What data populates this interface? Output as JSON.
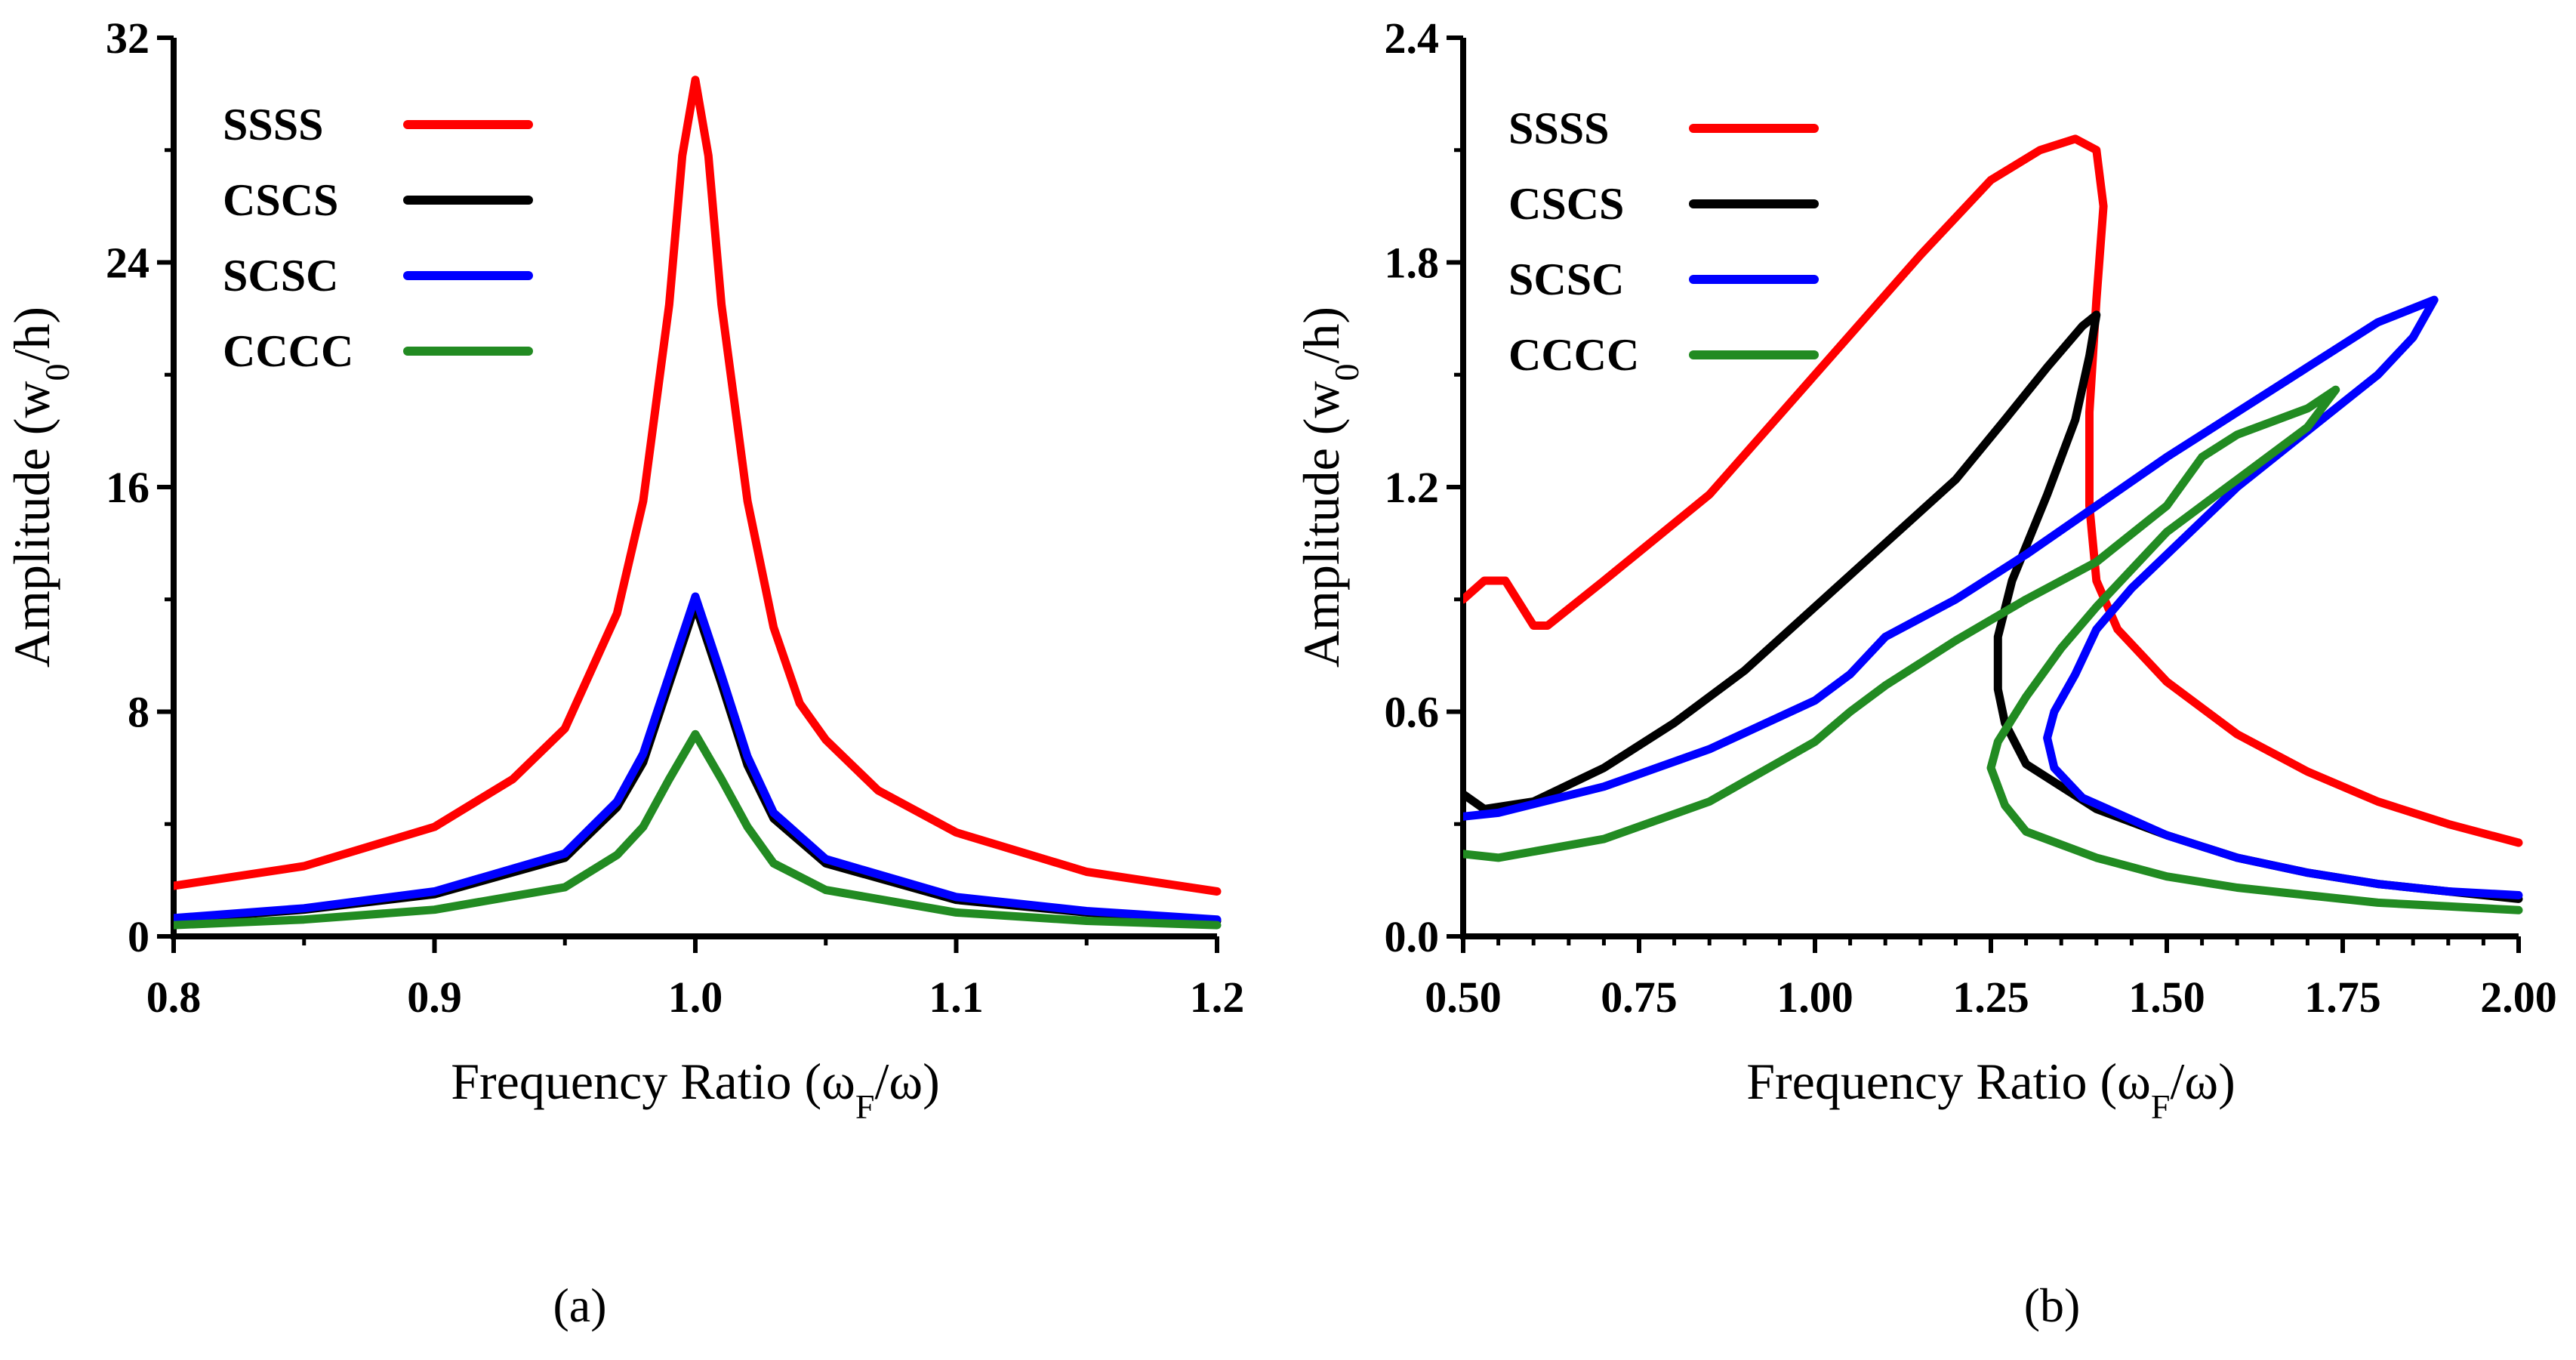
{
  "chart_data": [
    {
      "panel": "(a)",
      "type": "line",
      "xlabel": "Frequency Ratio (ω_F/ω)",
      "ylabel": "Amplitude (w_0/h)",
      "xlim": [
        0.8,
        1.2
      ],
      "ylim": [
        0,
        32
      ],
      "x_ticks": [
        "0.8",
        "0.9",
        "1.0",
        "1.1",
        "1.2"
      ],
      "y_ticks": [
        "0",
        "8",
        "16",
        "24",
        "32"
      ],
      "legend_position": "top-left",
      "grid": false,
      "series": [
        {
          "name": "SSSS",
          "color": "#ff0000",
          "points": [
            [
              0.8,
              1.8
            ],
            [
              0.85,
              2.5
            ],
            [
              0.9,
              3.9
            ],
            [
              0.93,
              5.6
            ],
            [
              0.95,
              7.4
            ],
            [
              0.97,
              11.5
            ],
            [
              0.98,
              15.5
            ],
            [
              0.99,
              22.5
            ],
            [
              0.995,
              27.8
            ],
            [
              1.0,
              30.5
            ],
            [
              1.005,
              27.8
            ],
            [
              1.01,
              22.5
            ],
            [
              1.02,
              15.5
            ],
            [
              1.03,
              11.0
            ],
            [
              1.04,
              8.3
            ],
            [
              1.05,
              7.0
            ],
            [
              1.07,
              5.2
            ],
            [
              1.1,
              3.7
            ],
            [
              1.15,
              2.3
            ],
            [
              1.2,
              1.6
            ]
          ]
        },
        {
          "name": "CSCS",
          "color": "#000000",
          "points": [
            [
              0.8,
              0.6
            ],
            [
              0.85,
              0.95
            ],
            [
              0.9,
              1.5
            ],
            [
              0.95,
              2.8
            ],
            [
              0.97,
              4.6
            ],
            [
              0.98,
              6.2
            ],
            [
              0.99,
              9.0
            ],
            [
              1.0,
              11.8
            ],
            [
              1.01,
              9.0
            ],
            [
              1.02,
              6.1
            ],
            [
              1.03,
              4.2
            ],
            [
              1.05,
              2.6
            ],
            [
              1.1,
              1.3
            ],
            [
              1.15,
              0.85
            ],
            [
              1.2,
              0.55
            ]
          ]
        },
        {
          "name": "SCSC",
          "color": "#0000ff",
          "points": [
            [
              0.8,
              0.65
            ],
            [
              0.85,
              1.0
            ],
            [
              0.9,
              1.6
            ],
            [
              0.95,
              2.95
            ],
            [
              0.97,
              4.8
            ],
            [
              0.98,
              6.5
            ],
            [
              0.99,
              9.3
            ],
            [
              1.0,
              12.1
            ],
            [
              1.01,
              9.3
            ],
            [
              1.02,
              6.4
            ],
            [
              1.03,
              4.4
            ],
            [
              1.05,
              2.75
            ],
            [
              1.1,
              1.4
            ],
            [
              1.15,
              0.9
            ],
            [
              1.2,
              0.6
            ]
          ]
        },
        {
          "name": "CCCC",
          "color": "#228b22",
          "points": [
            [
              0.8,
              0.4
            ],
            [
              0.85,
              0.6
            ],
            [
              0.9,
              0.95
            ],
            [
              0.95,
              1.75
            ],
            [
              0.97,
              2.9
            ],
            [
              0.98,
              3.9
            ],
            [
              0.99,
              5.6
            ],
            [
              1.0,
              7.2
            ],
            [
              1.01,
              5.6
            ],
            [
              1.02,
              3.9
            ],
            [
              1.03,
              2.6
            ],
            [
              1.05,
              1.65
            ],
            [
              1.1,
              0.85
            ],
            [
              1.15,
              0.55
            ],
            [
              1.2,
              0.4
            ]
          ]
        }
      ]
    },
    {
      "panel": "(b)",
      "type": "line",
      "xlabel": "Frequency Ratio (ω_F/ω)",
      "ylabel": "Amplitude (w_0/h)",
      "xlim": [
        0.5,
        2.0
      ],
      "ylim": [
        0,
        2.4
      ],
      "x_ticks": [
        "0.50",
        "0.75",
        "1.00",
        "1.25",
        "1.50",
        "1.75",
        "2.00"
      ],
      "y_ticks": [
        "0.0",
        "0.6",
        "1.2",
        "1.8",
        "2.4"
      ],
      "legend_position": "top-left",
      "grid": false,
      "series": [
        {
          "name": "SSSS",
          "color": "#ff0000",
          "points": [
            [
              0.5,
              0.9
            ],
            [
              0.53,
              0.95
            ],
            [
              0.56,
              0.95
            ],
            [
              0.6,
              0.83
            ],
            [
              0.62,
              0.83
            ],
            [
              0.7,
              0.95
            ],
            [
              0.85,
              1.18
            ],
            [
              1.0,
              1.5
            ],
            [
              1.15,
              1.82
            ],
            [
              1.25,
              2.02
            ],
            [
              1.32,
              2.1
            ],
            [
              1.37,
              2.13
            ],
            [
              1.4,
              2.1
            ],
            [
              1.41,
              1.95
            ],
            [
              1.4,
              1.7
            ],
            [
              1.39,
              1.4
            ],
            [
              1.39,
              1.15
            ],
            [
              1.4,
              0.95
            ],
            [
              1.43,
              0.82
            ],
            [
              1.5,
              0.68
            ],
            [
              1.6,
              0.54
            ],
            [
              1.7,
              0.44
            ],
            [
              1.8,
              0.36
            ],
            [
              1.9,
              0.3
            ],
            [
              2.0,
              0.25
            ]
          ]
        },
        {
          "name": "CSCS",
          "color": "#000000",
          "points": [
            [
              0.5,
              0.38
            ],
            [
              0.53,
              0.34
            ],
            [
              0.6,
              0.36
            ],
            [
              0.7,
              0.45
            ],
            [
              0.8,
              0.57
            ],
            [
              0.9,
              0.71
            ],
            [
              1.0,
              0.88
            ],
            [
              1.1,
              1.05
            ],
            [
              1.2,
              1.22
            ],
            [
              1.27,
              1.38
            ],
            [
              1.33,
              1.52
            ],
            [
              1.38,
              1.63
            ],
            [
              1.4,
              1.66
            ],
            [
              1.39,
              1.55
            ],
            [
              1.37,
              1.38
            ],
            [
              1.33,
              1.18
            ],
            [
              1.28,
              0.95
            ],
            [
              1.26,
              0.8
            ],
            [
              1.26,
              0.66
            ],
            [
              1.27,
              0.57
            ],
            [
              1.3,
              0.46
            ],
            [
              1.4,
              0.34
            ],
            [
              1.5,
              0.27
            ],
            [
              1.6,
              0.21
            ],
            [
              1.7,
              0.17
            ],
            [
              1.8,
              0.14
            ],
            [
              1.9,
              0.12
            ],
            [
              2.0,
              0.1
            ]
          ]
        },
        {
          "name": "SCSC",
          "color": "#0000ff",
          "points": [
            [
              0.5,
              0.32
            ],
            [
              0.55,
              0.33
            ],
            [
              0.7,
              0.4
            ],
            [
              0.85,
              0.5
            ],
            [
              1.0,
              0.63
            ],
            [
              1.05,
              0.7
            ],
            [
              1.1,
              0.8
            ],
            [
              1.2,
              0.9
            ],
            [
              1.3,
              1.02
            ],
            [
              1.4,
              1.15
            ],
            [
              1.5,
              1.28
            ],
            [
              1.6,
              1.4
            ],
            [
              1.7,
              1.52
            ],
            [
              1.8,
              1.64
            ],
            [
              1.88,
              1.7
            ],
            [
              1.85,
              1.6
            ],
            [
              1.8,
              1.5
            ],
            [
              1.7,
              1.35
            ],
            [
              1.6,
              1.2
            ],
            [
              1.5,
              1.02
            ],
            [
              1.45,
              0.93
            ],
            [
              1.4,
              0.82
            ],
            [
              1.37,
              0.7
            ],
            [
              1.34,
              0.6
            ],
            [
              1.33,
              0.53
            ],
            [
              1.34,
              0.45
            ],
            [
              1.38,
              0.37
            ],
            [
              1.5,
              0.27
            ],
            [
              1.6,
              0.21
            ],
            [
              1.7,
              0.17
            ],
            [
              1.8,
              0.14
            ],
            [
              1.9,
              0.12
            ],
            [
              2.0,
              0.11
            ]
          ]
        },
        {
          "name": "CCCC",
          "color": "#228b22",
          "points": [
            [
              0.5,
              0.22
            ],
            [
              0.55,
              0.21
            ],
            [
              0.7,
              0.26
            ],
            [
              0.85,
              0.36
            ],
            [
              1.0,
              0.52
            ],
            [
              1.05,
              0.6
            ],
            [
              1.1,
              0.67
            ],
            [
              1.2,
              0.79
            ],
            [
              1.3,
              0.9
            ],
            [
              1.4,
              1.0
            ],
            [
              1.5,
              1.15
            ],
            [
              1.55,
              1.28
            ],
            [
              1.6,
              1.34
            ],
            [
              1.7,
              1.41
            ],
            [
              1.74,
              1.46
            ],
            [
              1.7,
              1.36
            ],
            [
              1.6,
              1.22
            ],
            [
              1.5,
              1.08
            ],
            [
              1.4,
              0.88
            ],
            [
              1.35,
              0.77
            ],
            [
              1.3,
              0.64
            ],
            [
              1.26,
              0.52
            ],
            [
              1.25,
              0.45
            ],
            [
              1.27,
              0.35
            ],
            [
              1.3,
              0.28
            ],
            [
              1.4,
              0.21
            ],
            [
              1.5,
              0.16
            ],
            [
              1.6,
              0.13
            ],
            [
              1.7,
              0.11
            ],
            [
              1.8,
              0.09
            ],
            [
              1.9,
              0.08
            ],
            [
              2.0,
              0.07
            ]
          ]
        }
      ]
    }
  ]
}
